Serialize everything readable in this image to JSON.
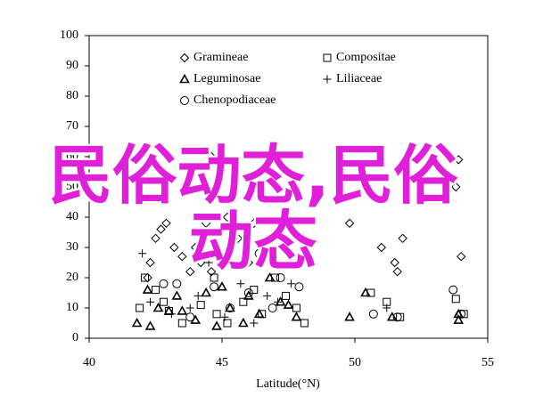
{
  "chart_data": {
    "type": "scatter",
    "x_label": "Latitude(°N)",
    "xlim": [
      40,
      55
    ],
    "xticks": [
      40,
      45,
      50,
      55
    ],
    "ylim": [
      0,
      100
    ],
    "yticks": [
      0,
      10,
      20,
      30,
      40,
      50,
      60,
      70,
      80,
      90,
      100
    ],
    "annotation": "民俗动态,民俗动态",
    "series": [
      {
        "name": "Gramineae",
        "marker": "diamond",
        "color": "#000000",
        "x": [
          42.2,
          42.3,
          42.5,
          42.7,
          42.9,
          43.2,
          43.5,
          43.8,
          44,
          44.2,
          44.4,
          44.5,
          44.6,
          45,
          45.2,
          45.6,
          46,
          46.2,
          46.7,
          47.2,
          47.4,
          47.8,
          44.6,
          43,
          42.9,
          49.8,
          51,
          51.8,
          51.5,
          53.9,
          53.8,
          54,
          51.6
        ],
        "y": [
          20,
          25,
          33,
          36,
          38,
          30,
          27,
          22,
          30,
          25,
          38,
          40,
          22,
          28,
          40,
          33,
          25,
          38,
          32,
          35,
          30,
          25,
          60,
          60,
          50,
          38,
          30,
          33,
          25,
          59,
          50,
          27,
          22
        ]
      },
      {
        "name": "Compositae",
        "marker": "square",
        "color": "#000000",
        "x": [
          41.9,
          42.1,
          42.5,
          42.8,
          43,
          43.5,
          44.2,
          44.7,
          44.8,
          45.2,
          45.8,
          46.2,
          46.5,
          47,
          47.4,
          47.8,
          48.1,
          50.6,
          51.2,
          51.7,
          53.8,
          54.1
        ],
        "y": [
          10,
          20,
          16,
          12,
          9,
          5,
          11,
          20,
          8,
          5,
          12,
          16,
          8,
          20,
          14,
          10,
          5,
          15,
          12,
          7,
          13,
          8
        ]
      },
      {
        "name": "Leguminosae",
        "marker": "triangle",
        "color": "#000000",
        "x": [
          41.8,
          42.2,
          42.3,
          42.6,
          43,
          43.3,
          43.5,
          44,
          44.4,
          44.8,
          45,
          45.3,
          45.8,
          46,
          46.4,
          46.8,
          47.2,
          47.5,
          47.8,
          49.8,
          50.4,
          51.4,
          53.9,
          53.9
        ],
        "y": [
          5,
          16,
          4,
          10,
          9,
          14,
          9,
          6,
          15,
          4,
          17,
          10,
          5,
          14,
          8,
          20,
          12,
          11,
          7,
          7,
          15,
          7,
          8,
          6
        ]
      },
      {
        "name": "Liliaceae",
        "marker": "plus",
        "color": "#000000",
        "x": [
          42,
          42.3,
          43.1,
          43.8,
          44.1,
          44.5,
          45.1,
          45.7,
          46.2,
          46.7,
          47.1,
          47.6,
          51.2
        ],
        "y": [
          28,
          12,
          8,
          10,
          14,
          25,
          7,
          18,
          5,
          14,
          12,
          18,
          10
        ]
      },
      {
        "name": "Chenopodiaceae",
        "marker": "circle",
        "color": "#000000",
        "x": [
          42.8,
          43.3,
          43.8,
          44.2,
          44.7,
          45.3,
          46,
          46.4,
          46.9,
          47.2,
          47.9,
          50.7,
          51.6,
          53.7,
          54
        ],
        "y": [
          18,
          18,
          7,
          28,
          17,
          10,
          15,
          28,
          10,
          20,
          17,
          8,
          7,
          16,
          8
        ]
      }
    ]
  }
}
